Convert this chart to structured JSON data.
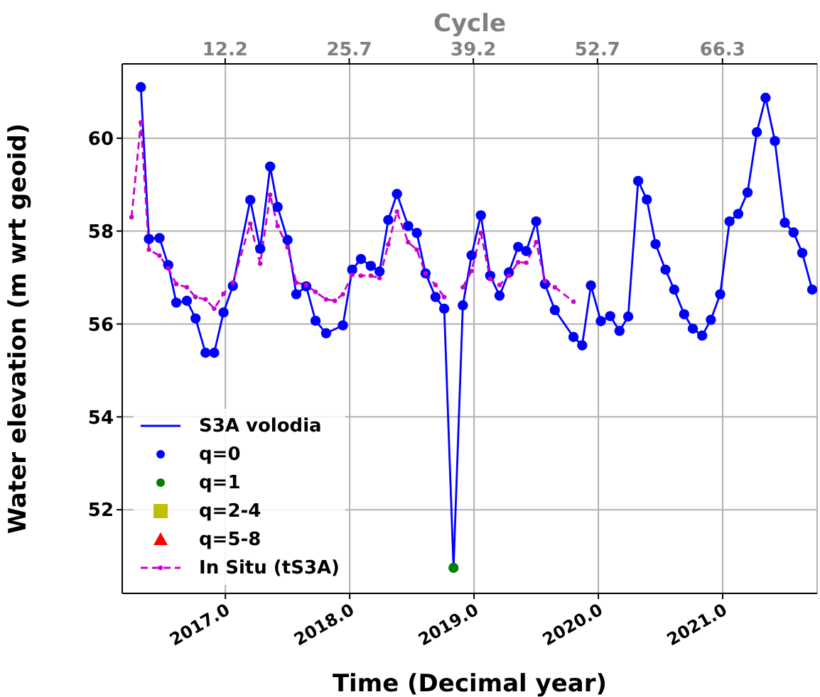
{
  "chart_data": {
    "type": "line",
    "xlabel": "Time (Decimal year)",
    "ylabel": "Water elevation (m wrt geoid)",
    "x2label": "Cycle",
    "xlim": [
      2016.17,
      2021.76
    ],
    "xticks": [
      {
        "value": 2017,
        "label": "2017.0"
      },
      {
        "value": 2018,
        "label": "2018.0"
      },
      {
        "value": 2019,
        "label": "2019.0"
      },
      {
        "value": 2020,
        "label": "2020.0"
      },
      {
        "value": 2021,
        "label": "2021.0"
      }
    ],
    "x2lim": [
      1.0,
      76.6
    ],
    "x2ticks": [
      12.2,
      25.7,
      39.2,
      52.7,
      66.3
    ],
    "ylim": [
      50.2,
      61.6
    ],
    "yticks": [
      52,
      54,
      56,
      58,
      60
    ],
    "grid": true,
    "legend": "bottom left",
    "series": [
      {
        "name": "S3A volodia",
        "marker": "none",
        "line_style": "solid",
        "color": "#0000ff",
        "x": [
          2016.32,
          2016.385,
          2016.47,
          2016.54,
          2016.605,
          2016.69,
          2016.76,
          2016.84,
          2016.91,
          2016.985,
          2017.06,
          2017.2,
          2017.28,
          2017.36,
          2017.42,
          2017.5,
          2017.57,
          2017.65,
          2017.725,
          2017.81,
          2017.945,
          2018.02,
          2018.09,
          2018.17,
          2018.24,
          2018.31,
          2018.38,
          2018.47,
          2018.54,
          2018.61,
          2018.69,
          2018.76,
          2018.835,
          2018.91,
          2018.98,
          2019.055,
          2019.13,
          2019.205,
          2019.28,
          2019.355,
          2019.42,
          2019.5,
          2019.57,
          2019.65,
          2019.8,
          2019.87,
          2019.94,
          2020.02,
          2020.095,
          2020.17,
          2020.24,
          2020.32,
          2020.39,
          2020.46,
          2020.54,
          2020.61,
          2020.69,
          2020.76,
          2020.835,
          2020.905,
          2020.98,
          2021.055,
          2021.125,
          2021.2,
          2021.275,
          2021.345,
          2021.42,
          2021.5,
          2021.57,
          2021.64,
          2021.72
        ],
        "values": [
          61.1,
          57.83,
          57.85,
          57.27,
          56.46,
          56.5,
          56.12,
          55.38,
          55.38,
          56.25,
          56.82,
          58.67,
          57.62,
          59.39,
          58.52,
          57.81,
          56.64,
          56.81,
          56.07,
          55.8,
          55.97,
          57.17,
          57.4,
          57.25,
          57.13,
          58.24,
          58.8,
          58.11,
          57.96,
          57.09,
          56.58,
          56.33,
          50.75,
          56.4,
          57.48,
          58.34,
          57.04,
          56.61,
          57.11,
          57.66,
          57.57,
          58.21,
          56.86,
          56.3,
          55.72,
          55.54,
          56.83,
          56.06,
          56.17,
          55.85,
          56.16,
          59.08,
          58.68,
          57.72,
          57.17,
          56.74,
          56.21,
          55.9,
          55.75,
          56.09,
          56.64,
          58.21,
          58.37,
          58.83,
          60.13,
          60.87,
          59.94,
          58.18,
          57.97,
          57.53,
          56.74
        ]
      },
      {
        "name": "q=0",
        "type": "scatter",
        "marker": "circle",
        "color": "#0000ff",
        "x": [
          2016.32,
          2016.385,
          2016.47,
          2016.54,
          2016.605,
          2016.69,
          2016.76,
          2016.84,
          2016.91,
          2016.985,
          2017.06,
          2017.2,
          2017.28,
          2017.36,
          2017.42,
          2017.5,
          2017.57,
          2017.65,
          2017.725,
          2017.81,
          2017.945,
          2018.02,
          2018.09,
          2018.17,
          2018.24,
          2018.31,
          2018.38,
          2018.47,
          2018.54,
          2018.61,
          2018.69,
          2018.76,
          2018.91,
          2018.98,
          2019.055,
          2019.13,
          2019.205,
          2019.28,
          2019.355,
          2019.42,
          2019.5,
          2019.57,
          2019.65,
          2019.8,
          2019.87,
          2019.94,
          2020.02,
          2020.095,
          2020.17,
          2020.24,
          2020.32,
          2020.39,
          2020.46,
          2020.54,
          2020.61,
          2020.69,
          2020.76,
          2020.835,
          2020.905,
          2020.98,
          2021.055,
          2021.125,
          2021.2,
          2021.275,
          2021.345,
          2021.42,
          2021.5,
          2021.57,
          2021.64,
          2021.72
        ],
        "values": [
          61.1,
          57.83,
          57.85,
          57.27,
          56.46,
          56.5,
          56.12,
          55.38,
          55.38,
          56.25,
          56.82,
          58.67,
          57.62,
          59.39,
          58.52,
          57.81,
          56.64,
          56.81,
          56.07,
          55.8,
          55.97,
          57.17,
          57.4,
          57.25,
          57.13,
          58.24,
          58.8,
          58.11,
          57.96,
          57.09,
          56.58,
          56.33,
          56.4,
          57.48,
          58.34,
          57.04,
          56.61,
          57.11,
          57.66,
          57.57,
          58.21,
          56.86,
          56.3,
          55.72,
          55.54,
          56.83,
          56.06,
          56.17,
          55.85,
          56.16,
          59.08,
          58.68,
          57.72,
          57.17,
          56.74,
          56.21,
          55.9,
          55.75,
          56.09,
          56.64,
          58.21,
          58.37,
          58.83,
          60.13,
          60.87,
          59.94,
          58.18,
          57.97,
          57.53,
          56.74
        ]
      },
      {
        "name": "q=1",
        "type": "scatter",
        "marker": "circle",
        "color": "#008000",
        "x": [
          2018.835
        ],
        "values": [
          50.75
        ]
      },
      {
        "name": "q=2-4",
        "type": "scatter",
        "marker": "square",
        "color": "#bfbf00"
      },
      {
        "name": "q=5-8",
        "type": "scatter",
        "marker": "triangle",
        "color": "#ff0000"
      },
      {
        "name": "In Situ (tS3A)",
        "marker": "circle",
        "line_style": "dashed",
        "color": "#cc00cc",
        "x": [
          2016.245,
          2016.32,
          2016.385,
          2016.47,
          2016.54,
          2016.605,
          2016.69,
          2016.76,
          2016.84,
          2016.91,
          2016.985,
          2017.06,
          2017.2,
          2017.28,
          2017.36,
          2017.42,
          2017.5,
          2017.57,
          2017.65,
          2017.725,
          2017.81,
          2017.88,
          2017.945,
          2018.02,
          2018.09,
          2018.17,
          2018.24,
          2018.31,
          2018.38,
          2018.47,
          2018.54,
          2018.61,
          2018.69,
          2018.76,
          2018.835,
          2018.91,
          2018.98,
          2019.055,
          2019.13,
          2019.205,
          2019.28,
          2019.355,
          2019.42,
          2019.5,
          2019.57,
          2019.65,
          2019.8
        ],
        "values": [
          58.3,
          60.34,
          57.6,
          57.47,
          57.2,
          56.86,
          56.79,
          56.58,
          56.53,
          56.33,
          56.65,
          56.89,
          58.16,
          57.3,
          58.78,
          58.11,
          57.65,
          56.89,
          56.84,
          56.69,
          56.53,
          56.5,
          56.64,
          57.06,
          57.04,
          57.04,
          56.99,
          57.71,
          58.42,
          57.76,
          57.6,
          57.09,
          56.84,
          56.58,
          null,
          56.79,
          57.14,
          57.96,
          56.97,
          56.84,
          57.04,
          57.33,
          57.32,
          57.76,
          56.92,
          56.79,
          56.48
        ]
      }
    ]
  }
}
